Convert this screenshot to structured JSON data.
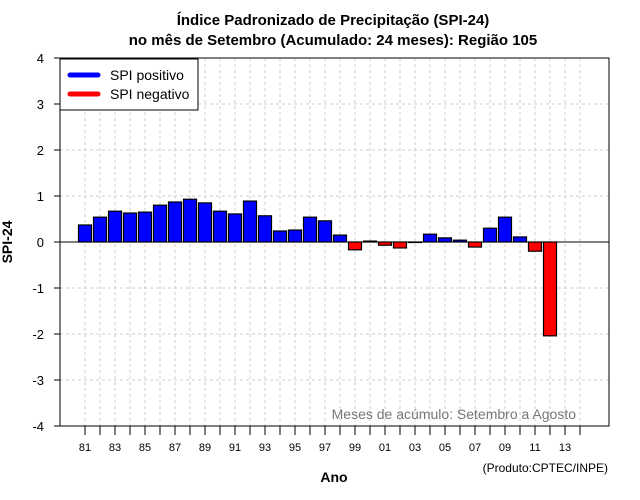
{
  "chart_data": {
    "type": "bar",
    "title": "Índice Padronizado de Precipitação (SPI-24)",
    "subtitle": "no mês de Setembro (Acumulado: 24 meses): Região 105",
    "xlabel": "Ano",
    "ylabel": "SPI-24",
    "ylim": [
      -4,
      4
    ],
    "yticks": [
      "-4",
      "-3",
      "-2",
      "-1",
      "0",
      "1",
      "2",
      "3",
      "4"
    ],
    "xlim_years": [
      1980,
      2015
    ],
    "xtick_labels": [
      "81",
      "83",
      "85",
      "87",
      "89",
      "91",
      "93",
      "95",
      "97",
      "99",
      "01",
      "03",
      "05",
      "07",
      "09",
      "11",
      "13"
    ],
    "grid": true,
    "legend": {
      "placement": "top-left",
      "entries": [
        {
          "label": "SPI positivo",
          "color": "#0000ff"
        },
        {
          "label": "SPI negativo",
          "color": "#ff0000"
        }
      ]
    },
    "colors": {
      "positive": "#0000ff",
      "negative": "#ff0000"
    },
    "years": [
      1981,
      1982,
      1983,
      1984,
      1985,
      1986,
      1987,
      1988,
      1989,
      1990,
      1991,
      1992,
      1993,
      1994,
      1995,
      1996,
      1997,
      1998,
      1999,
      2000,
      2001,
      2002,
      2003,
      2004,
      2005,
      2006,
      2007,
      2008,
      2009,
      2010,
      2011,
      2012
    ],
    "values": [
      0.37,
      0.54,
      0.67,
      0.63,
      0.65,
      0.8,
      0.87,
      0.93,
      0.85,
      0.67,
      0.61,
      0.89,
      0.57,
      0.24,
      0.26,
      0.54,
      0.46,
      0.15,
      -0.17,
      0.02,
      -0.07,
      -0.13,
      0.0,
      0.17,
      0.09,
      0.04,
      -0.11,
      0.3,
      0.54,
      0.11,
      -0.2,
      -2.04
    ],
    "annotation": "Meses de acúmulo: Setembro a Agosto",
    "credit": "(Produto:CPTEC/INPE)"
  }
}
